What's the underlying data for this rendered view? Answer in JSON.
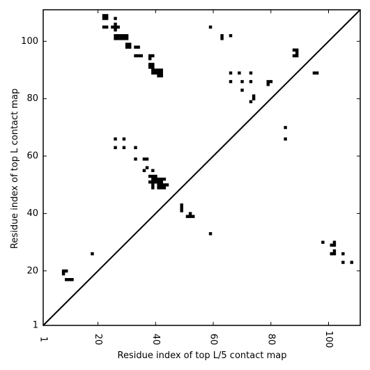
{
  "chart_data": {
    "type": "heatmap",
    "title": "",
    "xlabel": "Residue index of top L/5 contact map",
    "ylabel": "Residue index of top L contact map",
    "xlim": [
      1,
      111
    ],
    "ylim": [
      1,
      111
    ],
    "xticks": [
      1,
      20,
      40,
      60,
      80,
      100
    ],
    "yticks": [
      1,
      20,
      40,
      60,
      80,
      100
    ],
    "grid": false,
    "diagonal": true,
    "cell_color": "#000000",
    "line_color": "#000000",
    "upper_points": [
      [
        22,
        109
      ],
      [
        23,
        109
      ],
      [
        22,
        108
      ],
      [
        23,
        108
      ],
      [
        26,
        108
      ],
      [
        22,
        105
      ],
      [
        23,
        105
      ],
      [
        25,
        105
      ],
      [
        26,
        105
      ],
      [
        27,
        105
      ],
      [
        26,
        106
      ],
      [
        26,
        104
      ],
      [
        26,
        102
      ],
      [
        27,
        102
      ],
      [
        28,
        102
      ],
      [
        29,
        102
      ],
      [
        30,
        102
      ],
      [
        26,
        101
      ],
      [
        27,
        101
      ],
      [
        28,
        101
      ],
      [
        29,
        101
      ],
      [
        30,
        101
      ],
      [
        30,
        99
      ],
      [
        31,
        99
      ],
      [
        30,
        98
      ],
      [
        31,
        98
      ],
      [
        33,
        98
      ],
      [
        34,
        98
      ],
      [
        33,
        95
      ],
      [
        34,
        95
      ],
      [
        35,
        95
      ],
      [
        38,
        95
      ],
      [
        39,
        95
      ],
      [
        38,
        94
      ],
      [
        38,
        92
      ],
      [
        39,
        92
      ],
      [
        38,
        91
      ],
      [
        39,
        91
      ],
      [
        39,
        90
      ],
      [
        40,
        90
      ],
      [
        41,
        90
      ],
      [
        42,
        90
      ],
      [
        39,
        89
      ],
      [
        40,
        89
      ],
      [
        41,
        89
      ],
      [
        42,
        89
      ],
      [
        41,
        88
      ],
      [
        42,
        88
      ],
      [
        59,
        105
      ],
      [
        63,
        102
      ],
      [
        66,
        102
      ],
      [
        63,
        101
      ],
      [
        66,
        89
      ],
      [
        69,
        89
      ],
      [
        73,
        89
      ],
      [
        66,
        86
      ],
      [
        70,
        86
      ],
      [
        73,
        86
      ],
      [
        70,
        83
      ],
      [
        74,
        81
      ],
      [
        74,
        80
      ],
      [
        73,
        79
      ],
      [
        79,
        86
      ],
      [
        80,
        86
      ],
      [
        79,
        85
      ],
      [
        88,
        97
      ],
      [
        89,
        97
      ],
      [
        89,
        96
      ],
      [
        88,
        95
      ],
      [
        89,
        95
      ],
      [
        95,
        89
      ],
      [
        96,
        89
      ],
      [
        85,
        70
      ],
      [
        85,
        66
      ]
    ],
    "lower_points": [
      [
        26,
        66
      ],
      [
        29,
        66
      ],
      [
        26,
        63
      ],
      [
        29,
        63
      ],
      [
        33,
        63
      ],
      [
        33,
        59
      ],
      [
        36,
        59
      ],
      [
        37,
        59
      ],
      [
        37,
        56
      ],
      [
        36,
        55
      ],
      [
        39,
        55
      ],
      [
        38,
        53
      ],
      [
        39,
        53
      ],
      [
        40,
        53
      ],
      [
        39,
        52
      ],
      [
        40,
        52
      ],
      [
        41,
        52
      ],
      [
        42,
        52
      ],
      [
        43,
        52
      ],
      [
        38,
        51
      ],
      [
        39,
        51
      ],
      [
        40,
        51
      ],
      [
        41,
        51
      ],
      [
        42,
        51
      ],
      [
        39,
        50
      ],
      [
        41,
        50
      ],
      [
        42,
        50
      ],
      [
        43,
        50
      ],
      [
        44,
        50
      ],
      [
        39,
        49
      ],
      [
        41,
        49
      ],
      [
        42,
        49
      ],
      [
        43,
        49
      ],
      [
        49,
        43
      ],
      [
        49,
        42
      ],
      [
        49,
        41
      ],
      [
        52,
        40
      ],
      [
        51,
        39
      ],
      [
        52,
        39
      ],
      [
        53,
        39
      ],
      [
        59,
        33
      ],
      [
        18,
        26
      ],
      [
        8,
        20
      ],
      [
        9,
        20
      ],
      [
        8,
        19
      ],
      [
        9,
        17
      ],
      [
        10,
        17
      ],
      [
        11,
        17
      ],
      [
        98,
        30
      ],
      [
        102,
        30
      ],
      [
        101,
        29
      ],
      [
        102,
        29
      ],
      [
        102,
        27
      ],
      [
        101,
        26
      ],
      [
        102,
        26
      ],
      [
        105,
        26
      ],
      [
        105,
        23
      ],
      [
        108,
        23
      ]
    ]
  }
}
